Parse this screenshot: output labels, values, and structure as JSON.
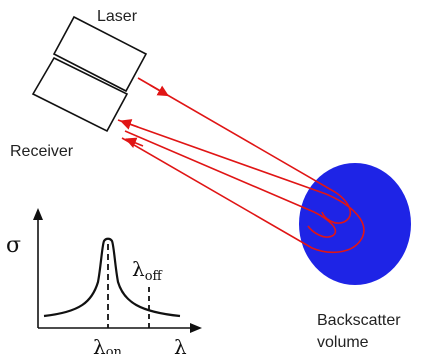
{
  "labels": {
    "laser": "Laser",
    "receiver": "Receiver",
    "backscatter_line1": "Backscatter",
    "backscatter_line2": "volume"
  },
  "plot": {
    "y_symbol": "σ",
    "lambda": "λ",
    "on_sub": "on",
    "off_sub": "off"
  },
  "colors": {
    "beam": "#e01515",
    "volume": "#1e24e6",
    "outline": "#111111"
  }
}
